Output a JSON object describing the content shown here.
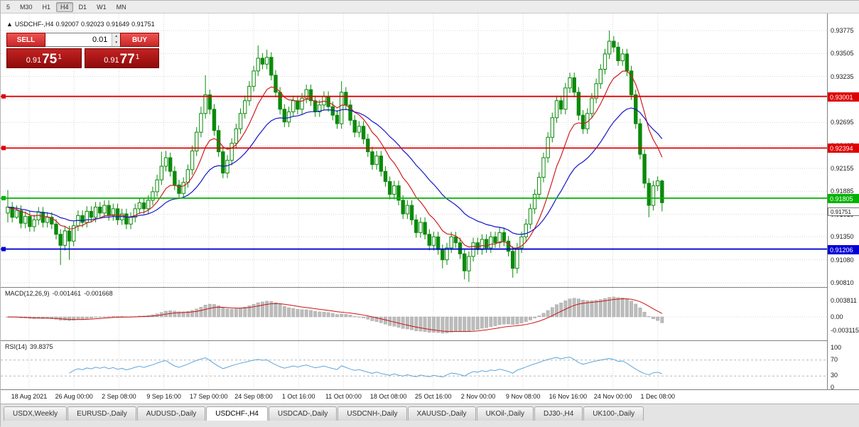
{
  "toolbar": {
    "buttons": [
      "5",
      "M30",
      "H1",
      "H4",
      "D1",
      "W1",
      "MN"
    ],
    "active": "H4"
  },
  "chart": {
    "symbol_header": {
      "marker": "▲",
      "title": "USDCHF-,H4",
      "open": "0.92007",
      "high": "0.92023",
      "low": "0.91649",
      "close": "0.91751"
    },
    "trade_panel": {
      "sell_label": "SELL",
      "buy_label": "BUY",
      "volume": "0.01",
      "sell_price": {
        "prefix": "0.91",
        "big": "75",
        "sup": "1"
      },
      "buy_price": {
        "prefix": "0.91",
        "big": "77",
        "sup": "1"
      }
    },
    "price_axis": [
      "0.93775",
      "0.93505",
      "0.93235",
      "0.92965",
      "0.92695",
      "0.92425",
      "0.92155",
      "0.91885",
      "0.91615",
      "0.91350",
      "0.91080",
      "0.90810"
    ],
    "hlines": [
      {
        "value": 0.93001,
        "label": "0.93001",
        "color": "#dd0000"
      },
      {
        "value": 0.92394,
        "label": "0.92394",
        "color": "#dd0000"
      },
      {
        "value": 0.91805,
        "label": "0.91805",
        "color": "#00b300"
      },
      {
        "value": 0.91206,
        "label": "0.91206",
        "color": "#0000d6"
      }
    ],
    "current_price_label": "0.91751",
    "time_axis": [
      "18 Aug 2021",
      "26 Aug 00:00",
      "2 Sep 08:00",
      "9 Sep 16:00",
      "17 Sep 00:00",
      "24 Sep 08:00",
      "1 Oct 16:00",
      "11 Oct 00:00",
      "18 Oct 08:00",
      "25 Oct 16:00",
      "2 Nov 00:00",
      "9 Nov 08:00",
      "16 Nov 16:00",
      "24 Nov 00:00",
      "1 Dec 08:00"
    ]
  },
  "chart_data": {
    "type": "candlestick",
    "symbol": "USDCHF-",
    "timeframe": "H4",
    "ylim": [
      0.9081,
      0.93775
    ],
    "ohlc_display": {
      "open": 0.92007,
      "high": 0.92023,
      "low": 0.91649,
      "close": 0.91751
    },
    "first_open": 0.9163,
    "closes": [
      0.917,
      0.9158,
      0.9166,
      0.9151,
      0.9159,
      0.9147,
      0.9155,
      0.9164,
      0.9152,
      0.9158,
      0.915,
      0.9138,
      0.9125,
      0.9142,
      0.913,
      0.9148,
      0.916,
      0.9152,
      0.9165,
      0.9158,
      0.917,
      0.9163,
      0.9172,
      0.916,
      0.9168,
      0.9155,
      0.9162,
      0.915,
      0.9158,
      0.9168,
      0.9175,
      0.9168,
      0.9178,
      0.9188,
      0.9202,
      0.9218,
      0.9228,
      0.9212,
      0.9196,
      0.9186,
      0.9199,
      0.9214,
      0.9236,
      0.9258,
      0.928,
      0.9302,
      0.9285,
      0.926,
      0.9235,
      0.921,
      0.9225,
      0.9245,
      0.9262,
      0.928,
      0.9295,
      0.9312,
      0.933,
      0.9345,
      0.9338,
      0.9346,
      0.9325,
      0.9305,
      0.9285,
      0.927,
      0.9282,
      0.9295,
      0.9285,
      0.9298,
      0.9308,
      0.9295,
      0.9282,
      0.929,
      0.93,
      0.9288,
      0.9278,
      0.9268,
      0.9305,
      0.929,
      0.9272,
      0.9258,
      0.9265,
      0.925,
      0.9235,
      0.922,
      0.923,
      0.9212,
      0.92,
      0.9185,
      0.9195,
      0.9178,
      0.9162,
      0.9172,
      0.9155,
      0.914,
      0.9152,
      0.9138,
      0.9125,
      0.9135,
      0.912,
      0.9108,
      0.9122,
      0.9135,
      0.9128,
      0.9115,
      0.9095,
      0.9112,
      0.9128,
      0.912,
      0.9132,
      0.9122,
      0.9135,
      0.9128,
      0.914,
      0.913,
      0.9118,
      0.9098,
      0.9122,
      0.9135,
      0.915,
      0.9168,
      0.9185,
      0.9205,
      0.9228,
      0.9252,
      0.9275,
      0.9295,
      0.9285,
      0.931,
      0.9322,
      0.9305,
      0.9278,
      0.9262,
      0.928,
      0.9298,
      0.9315,
      0.9332,
      0.935,
      0.9365,
      0.9358,
      0.9342,
      0.935,
      0.933,
      0.9302,
      0.9268,
      0.9232,
      0.9198,
      0.9172,
      0.9195,
      0.92007,
      0.91751
    ],
    "highs": [
      0.919,
      0.9176,
      0.9172,
      0.9172,
      0.9165,
      0.9165,
      0.9161,
      0.917,
      0.917,
      0.9164,
      0.9164,
      0.9156,
      0.9144,
      0.9148,
      0.9148,
      0.9154,
      0.9166,
      0.9166,
      0.9171,
      0.9171,
      0.9176,
      0.9176,
      0.9178,
      0.9178,
      0.9174,
      0.9174,
      0.9168,
      0.9168,
      0.9164,
      0.9174,
      0.9181,
      0.9181,
      0.9184,
      0.9194,
      0.9208,
      0.9235,
      0.9236,
      0.9234,
      0.9218,
      0.9202,
      0.9205,
      0.922,
      0.9242,
      0.9264,
      0.9288,
      0.9325,
      0.9308,
      0.9291,
      0.9266,
      0.9241,
      0.9231,
      0.9251,
      0.9268,
      0.9286,
      0.9301,
      0.9318,
      0.9336,
      0.936,
      0.9351,
      0.9355,
      0.9352,
      0.9331,
      0.9311,
      0.9291,
      0.9288,
      0.9301,
      0.9301,
      0.9304,
      0.9314,
      0.9314,
      0.9301,
      0.9296,
      0.9306,
      0.9306,
      0.9294,
      0.9284,
      0.9318,
      0.9311,
      0.9296,
      0.9278,
      0.9271,
      0.9271,
      0.9256,
      0.9241,
      0.9236,
      0.9236,
      0.9218,
      0.9206,
      0.9201,
      0.9201,
      0.9184,
      0.9178,
      0.9178,
      0.9161,
      0.9158,
      0.9158,
      0.9144,
      0.9141,
      0.9141,
      0.9126,
      0.9128,
      0.9141,
      0.9141,
      0.9134,
      0.9121,
      0.9118,
      0.9134,
      0.9134,
      0.9138,
      0.9138,
      0.9141,
      0.9141,
      0.9146,
      0.9146,
      0.9136,
      0.9124,
      0.9128,
      0.9141,
      0.9156,
      0.9174,
      0.9191,
      0.9211,
      0.9234,
      0.9258,
      0.9281,
      0.9301,
      0.9301,
      0.9316,
      0.9328,
      0.9328,
      0.9311,
      0.9284,
      0.9286,
      0.9304,
      0.9321,
      0.9338,
      0.9356,
      0.93775,
      0.9371,
      0.9364,
      0.9356,
      0.9356,
      0.9336,
      0.9308,
      0.9274,
      0.9238,
      0.9204,
      0.9201,
      0.9206,
      0.92023
    ],
    "lows": [
      0.9152,
      0.9152,
      0.9156,
      0.9145,
      0.9145,
      0.9141,
      0.9141,
      0.9149,
      0.9146,
      0.9146,
      0.9144,
      0.9132,
      0.9102,
      0.9119,
      0.9108,
      0.9124,
      0.9142,
      0.9146,
      0.9146,
      0.9152,
      0.9152,
      0.9157,
      0.9157,
      0.9154,
      0.9154,
      0.9149,
      0.9149,
      0.9144,
      0.9144,
      0.9152,
      0.9162,
      0.9162,
      0.9162,
      0.9172,
      0.9182,
      0.9196,
      0.9212,
      0.9206,
      0.919,
      0.918,
      0.918,
      0.9193,
      0.9208,
      0.923,
      0.9252,
      0.9274,
      0.9279,
      0.9254,
      0.9229,
      0.9204,
      0.9204,
      0.9219,
      0.9239,
      0.9256,
      0.9274,
      0.9289,
      0.9306,
      0.9324,
      0.9332,
      0.9332,
      0.9319,
      0.9299,
      0.9279,
      0.9264,
      0.9264,
      0.9276,
      0.9279,
      0.9279,
      0.9292,
      0.9289,
      0.9276,
      0.9276,
      0.9284,
      0.9282,
      0.9272,
      0.9262,
      0.9262,
      0.9284,
      0.9266,
      0.9252,
      0.9252,
      0.9244,
      0.9229,
      0.9214,
      0.9214,
      0.9206,
      0.9194,
      0.9179,
      0.9179,
      0.9172,
      0.9156,
      0.9156,
      0.9149,
      0.9134,
      0.9134,
      0.9132,
      0.9119,
      0.9119,
      0.9114,
      0.9098,
      0.9102,
      0.9116,
      0.9122,
      0.9109,
      0.9085,
      0.9082,
      0.9106,
      0.9114,
      0.9114,
      0.9116,
      0.9116,
      0.9122,
      0.9122,
      0.9124,
      0.9112,
      0.9087,
      0.9092,
      0.9116,
      0.9129,
      0.9144,
      0.9162,
      0.9179,
      0.9199,
      0.9222,
      0.9246,
      0.9269,
      0.9279,
      0.9279,
      0.9304,
      0.9299,
      0.9272,
      0.9256,
      0.9256,
      0.9274,
      0.9292,
      0.9309,
      0.9326,
      0.9344,
      0.9352,
      0.9336,
      0.9336,
      0.9324,
      0.9296,
      0.9262,
      0.9226,
      0.9192,
      0.9158,
      0.9166,
      0.9189,
      0.91649
    ],
    "overlays": [
      {
        "name": "ma-fast",
        "type": "ema",
        "period": 10,
        "color": "#cf1f1f"
      },
      {
        "name": "ma-slow",
        "type": "ema",
        "period": 25,
        "color": "#1616c8"
      }
    ],
    "candle_up_color": "#0b8a0b",
    "candle_down_color": "#0b8a0b"
  },
  "macd": {
    "label": "MACD(12,26,9)",
    "value1": "-0.001461",
    "value2": "-0.001668",
    "params": {
      "fast": 12,
      "slow": 26,
      "signal": 9
    },
    "axis": [
      "0.003811",
      "0.00",
      "-0.003115"
    ],
    "histogram_color": "#bcbcbc",
    "signal_color": "#cc1111"
  },
  "rsi": {
    "label": "RSI(14)",
    "value_text": "39.8375",
    "period": 14,
    "axis": [
      "100",
      "70",
      "30",
      "0"
    ],
    "levels": [
      70,
      30
    ],
    "line_color": "#4f9bd5"
  },
  "tabs": {
    "items": [
      "USDX,Weekly",
      "EURUSD-,Daily",
      "AUDUSD-,Daily",
      "USDCHF-,H4",
      "USDCAD-,Daily",
      "USDCNH-,Daily",
      "XAUUSD-,Daily",
      "UKOil-,Daily",
      "DJ30-,H4",
      "UK100-,Daily"
    ],
    "active_index": 3
  }
}
